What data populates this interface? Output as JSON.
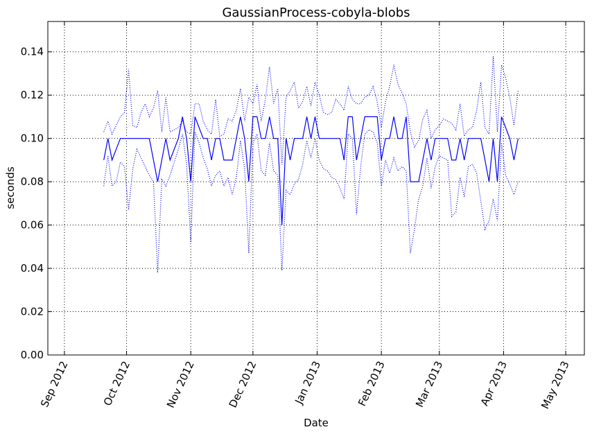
{
  "chart_data": {
    "type": "line",
    "title": "GaussianProcess-cobyla-blobs",
    "xlabel": "Date",
    "ylabel": "seconds",
    "x_axis": {
      "kind": "date",
      "range": [
        "2012-08-24",
        "2013-05-10"
      ],
      "ticks": [
        {
          "date": "2012-09-01",
          "label": "Sep 2012"
        },
        {
          "date": "2012-10-01",
          "label": "Oct 2012"
        },
        {
          "date": "2012-11-01",
          "label": "Nov 2012"
        },
        {
          "date": "2012-12-01",
          "label": "Dec 2012"
        },
        {
          "date": "2013-01-01",
          "label": "Jan 2013"
        },
        {
          "date": "2013-02-01",
          "label": "Feb 2013"
        },
        {
          "date": "2013-03-01",
          "label": "Mar 2013"
        },
        {
          "date": "2013-04-01",
          "label": "Apr 2013"
        },
        {
          "date": "2013-05-01",
          "label": "May 2013"
        }
      ]
    },
    "y_axis": {
      "range": [
        0,
        0.154
      ],
      "ticks": [
        0,
        0.02,
        0.04,
        0.06,
        0.08,
        0.1,
        0.12,
        0.14
      ],
      "tick_labels": [
        "0.00",
        "0.02",
        "0.04",
        "0.06",
        "0.08",
        "0.10",
        "0.12",
        "0.14"
      ]
    },
    "grid": true,
    "colors": {
      "series": "#0000ff",
      "grid": "#000000"
    },
    "x": [
      "2012-09-20",
      "2012-09-22",
      "2012-09-24",
      "2012-09-26",
      "2012-09-28",
      "2012-09-30",
      "2012-10-02",
      "2012-10-04",
      "2012-10-06",
      "2012-10-08",
      "2012-10-10",
      "2012-10-12",
      "2012-10-14",
      "2012-10-16",
      "2012-10-18",
      "2012-10-20",
      "2012-10-22",
      "2012-10-24",
      "2012-10-26",
      "2012-10-28",
      "2012-10-30",
      "2012-11-01",
      "2012-11-03",
      "2012-11-05",
      "2012-11-07",
      "2012-11-09",
      "2012-11-11",
      "2012-11-13",
      "2012-11-15",
      "2012-11-17",
      "2012-11-19",
      "2012-11-21",
      "2012-11-23",
      "2012-11-25",
      "2012-11-27",
      "2012-11-29",
      "2012-12-01",
      "2012-12-03",
      "2012-12-05",
      "2012-12-07",
      "2012-12-09",
      "2012-12-11",
      "2012-12-13",
      "2012-12-15",
      "2012-12-17",
      "2012-12-19",
      "2012-12-21",
      "2012-12-23",
      "2012-12-25",
      "2012-12-27",
      "2012-12-29",
      "2012-12-31",
      "2013-01-02",
      "2013-01-04",
      "2013-01-06",
      "2013-01-08",
      "2013-01-10",
      "2013-01-12",
      "2013-01-14",
      "2013-01-16",
      "2013-01-18",
      "2013-01-20",
      "2013-01-22",
      "2013-01-24",
      "2013-01-26",
      "2013-01-28",
      "2013-01-30",
      "2013-02-01",
      "2013-02-03",
      "2013-02-05",
      "2013-02-07",
      "2013-02-09",
      "2013-02-11",
      "2013-02-13",
      "2013-02-15",
      "2013-02-17",
      "2013-02-19",
      "2013-02-21",
      "2013-02-23",
      "2013-02-25",
      "2013-02-27",
      "2013-03-01",
      "2013-03-03",
      "2013-03-05",
      "2013-03-07",
      "2013-03-09",
      "2013-03-11",
      "2013-03-13",
      "2013-03-15",
      "2013-03-17",
      "2013-03-19",
      "2013-03-21",
      "2013-03-23",
      "2013-03-25",
      "2013-03-27",
      "2013-03-29",
      "2013-03-31",
      "2013-04-02",
      "2013-04-04",
      "2013-04-06",
      "2013-04-08"
    ],
    "series": [
      {
        "role": "mean",
        "style": "solid",
        "values": [
          0.09,
          0.1,
          0.09,
          0.095,
          0.1,
          0.1,
          0.1,
          0.1,
          0.1,
          0.1,
          0.1,
          0.1,
          0.09,
          0.08,
          0.09,
          0.1,
          0.09,
          0.095,
          0.1,
          0.11,
          0.1,
          0.08,
          0.11,
          0.105,
          0.1,
          0.1,
          0.09,
          0.1,
          0.1,
          0.09,
          0.09,
          0.09,
          0.1,
          0.11,
          0.1,
          0.08,
          0.11,
          0.11,
          0.1,
          0.1,
          0.11,
          0.1,
          0.1,
          0.06,
          0.1,
          0.09,
          0.1,
          0.1,
          0.1,
          0.11,
          0.1,
          0.11,
          0.1,
          0.1,
          0.1,
          0.1,
          0.1,
          0.1,
          0.09,
          0.11,
          0.11,
          0.09,
          0.1,
          0.11,
          0.11,
          0.11,
          0.11,
          0.09,
          0.1,
          0.1,
          0.11,
          0.1,
          0.1,
          0.11,
          0.08,
          0.08,
          0.08,
          0.09,
          0.1,
          0.09,
          0.1,
          0.1,
          0.1,
          0.1,
          0.09,
          0.09,
          0.1,
          0.09,
          0.1,
          0.1,
          0.1,
          0.1,
          0.09,
          0.08,
          0.1,
          0.08,
          0.11,
          0.105,
          0.1,
          0.09,
          0.1
        ]
      },
      {
        "role": "upper",
        "style": "dotted",
        "values": [
          0.103,
          0.108,
          0.102,
          0.106,
          0.11,
          0.112,
          0.132,
          0.106,
          0.105,
          0.112,
          0.116,
          0.11,
          0.114,
          0.122,
          0.103,
          0.119,
          0.103,
          0.104,
          0.105,
          0.108,
          0.103,
          0.102,
          0.116,
          0.116,
          0.108,
          0.104,
          0.102,
          0.118,
          0.101,
          0.102,
          0.109,
          0.108,
          0.113,
          0.123,
          0.108,
          0.119,
          0.116,
          0.125,
          0.108,
          0.118,
          0.133,
          0.116,
          0.123,
          0.088,
          0.119,
          0.122,
          0.126,
          0.114,
          0.117,
          0.124,
          0.115,
          0.126,
          0.12,
          0.112,
          0.111,
          0.112,
          0.118,
          0.116,
          0.113,
          0.124,
          0.118,
          0.116,
          0.116,
          0.119,
          0.12,
          0.124,
          0.117,
          0.105,
          0.117,
          0.124,
          0.134,
          0.125,
          0.121,
          0.116,
          0.103,
          0.096,
          0.099,
          0.109,
          0.113,
          0.1,
          0.104,
          0.106,
          0.109,
          0.108,
          0.107,
          0.104,
          0.116,
          0.101,
          0.104,
          0.105,
          0.113,
          0.126,
          0.105,
          0.102,
          0.138,
          0.103,
          0.134,
          0.128,
          0.119,
          0.106,
          0.122
        ]
      },
      {
        "role": "lower",
        "style": "dotted",
        "values": [
          0.078,
          0.092,
          0.078,
          0.08,
          0.089,
          0.087,
          0.067,
          0.086,
          0.095,
          0.091,
          0.087,
          0.083,
          0.08,
          0.038,
          0.081,
          0.078,
          0.083,
          0.089,
          0.095,
          0.102,
          0.088,
          0.052,
          0.103,
          0.098,
          0.091,
          0.086,
          0.078,
          0.083,
          0.085,
          0.078,
          0.082,
          0.074,
          0.082,
          0.099,
          0.086,
          0.047,
          0.098,
          0.102,
          0.085,
          0.083,
          0.098,
          0.085,
          0.083,
          0.039,
          0.076,
          0.074,
          0.079,
          0.081,
          0.088,
          0.099,
          0.091,
          0.1,
          0.09,
          0.086,
          0.085,
          0.082,
          0.081,
          0.077,
          0.072,
          0.102,
          0.1,
          0.065,
          0.087,
          0.102,
          0.104,
          0.103,
          0.098,
          0.078,
          0.09,
          0.084,
          0.091,
          0.085,
          0.087,
          0.085,
          0.047,
          0.058,
          0.072,
          0.078,
          0.091,
          0.077,
          0.087,
          0.092,
          0.091,
          0.09,
          0.064,
          0.066,
          0.082,
          0.073,
          0.087,
          0.088,
          0.084,
          0.071,
          0.058,
          0.062,
          0.072,
          0.062,
          0.098,
          0.083,
          0.079,
          0.074,
          0.08
        ]
      }
    ]
  }
}
